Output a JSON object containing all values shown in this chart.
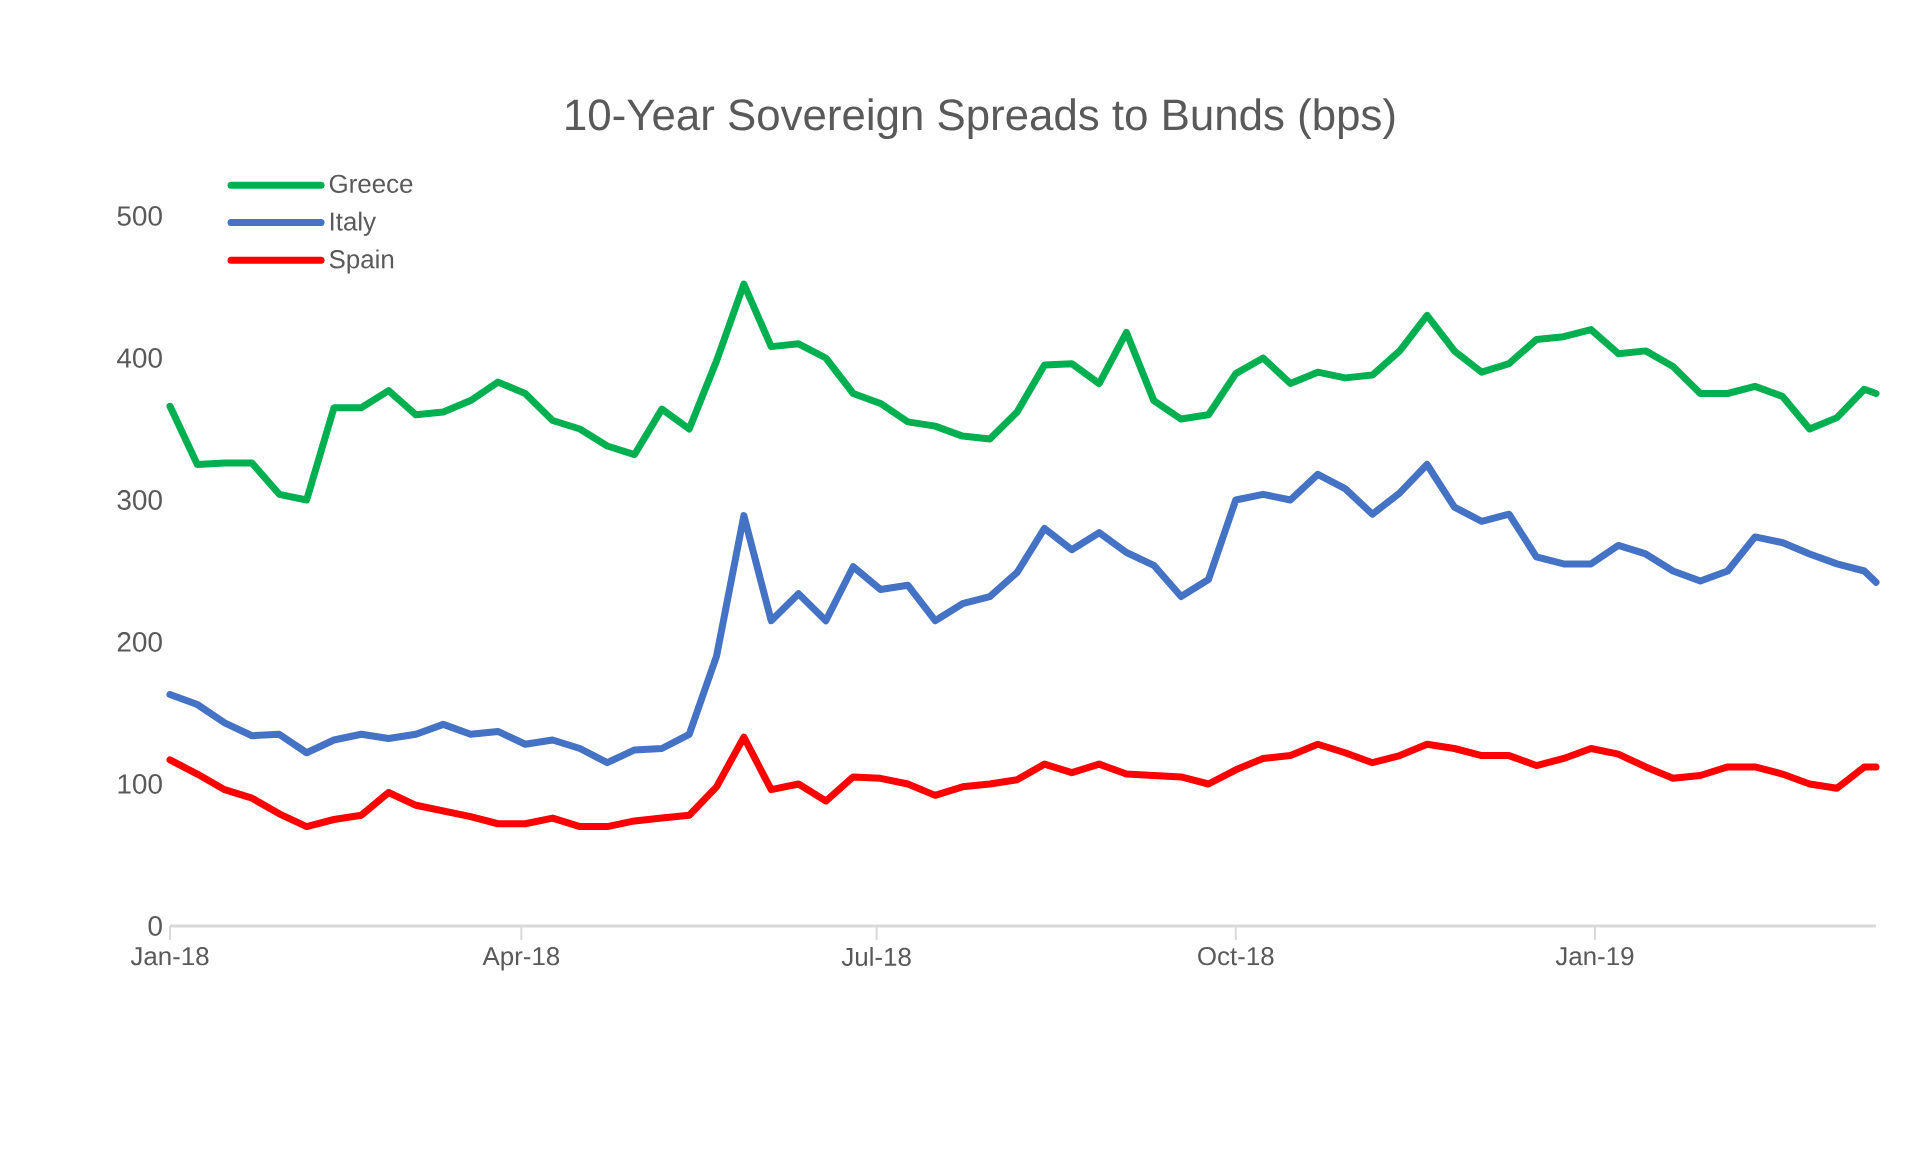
{
  "chart_data": {
    "type": "line",
    "title": "10-Year Sovereign Spreads to Bunds (bps)",
    "x": [
      "2018-01-01",
      "2018-01-08",
      "2018-01-15",
      "2018-01-22",
      "2018-01-29",
      "2018-02-05",
      "2018-02-12",
      "2018-02-19",
      "2018-02-26",
      "2018-03-05",
      "2018-03-12",
      "2018-03-19",
      "2018-03-26",
      "2018-04-02",
      "2018-04-09",
      "2018-04-16",
      "2018-04-23",
      "2018-04-30",
      "2018-05-07",
      "2018-05-14",
      "2018-05-21",
      "2018-05-28",
      "2018-06-04",
      "2018-06-11",
      "2018-06-18",
      "2018-06-25",
      "2018-07-02",
      "2018-07-09",
      "2018-07-16",
      "2018-07-23",
      "2018-07-30",
      "2018-08-06",
      "2018-08-13",
      "2018-08-20",
      "2018-08-27",
      "2018-09-03",
      "2018-09-10",
      "2018-09-17",
      "2018-09-24",
      "2018-10-01",
      "2018-10-08",
      "2018-10-15",
      "2018-10-22",
      "2018-10-29",
      "2018-11-05",
      "2018-11-12",
      "2018-11-19",
      "2018-11-26",
      "2018-12-03",
      "2018-12-10",
      "2018-12-17",
      "2018-12-24",
      "2018-12-31",
      "2019-01-07",
      "2019-01-14",
      "2019-01-21",
      "2019-01-28",
      "2019-02-04",
      "2019-02-11",
      "2019-02-18",
      "2019-02-25",
      "2019-03-04",
      "2019-03-11",
      "2019-03-14"
    ],
    "series": [
      {
        "name": "Greece",
        "color": "#00b050",
        "values": [
          366,
          325,
          326,
          326,
          304,
          300,
          365,
          365,
          377,
          360,
          362,
          370,
          383,
          375,
          356,
          350,
          338,
          332,
          364,
          350,
          398,
          452,
          408,
          410,
          400,
          375,
          368,
          355,
          352,
          345,
          343,
          362,
          395,
          396,
          382,
          418,
          370,
          357,
          360,
          389,
          400,
          382,
          390,
          386,
          388,
          405,
          430,
          405,
          390,
          396,
          413,
          415,
          420,
          403,
          405,
          394,
          375,
          375,
          380,
          373,
          350,
          358,
          378,
          375
        ]
      },
      {
        "name": "Italy",
        "color": "#4472c4",
        "values": [
          163,
          156,
          143,
          134,
          135,
          122,
          131,
          135,
          132,
          135,
          142,
          135,
          137,
          128,
          131,
          125,
          115,
          124,
          125,
          135,
          190,
          289,
          215,
          234,
          215,
          253,
          237,
          240,
          215,
          227,
          232,
          249,
          280,
          265,
          277,
          263,
          254,
          232,
          244,
          300,
          304,
          300,
          318,
          308,
          290,
          305,
          325,
          295,
          285,
          290,
          260,
          255,
          255,
          268,
          262,
          250,
          243,
          250,
          274,
          270,
          262,
          255,
          250,
          242
        ]
      },
      {
        "name": "Spain",
        "color": "#ff0000",
        "values": [
          117,
          107,
          96,
          90,
          79,
          70,
          75,
          78,
          94,
          85,
          81,
          77,
          72,
          72,
          76,
          70,
          70,
          74,
          76,
          78,
          98,
          133,
          96,
          100,
          88,
          105,
          104,
          100,
          92,
          98,
          100,
          103,
          114,
          108,
          114,
          107,
          106,
          105,
          100,
          110,
          118,
          120,
          128,
          122,
          115,
          120,
          128,
          125,
          120,
          120,
          113,
          118,
          125,
          121,
          112,
          104,
          106,
          112,
          112,
          107,
          100,
          97,
          112,
          112
        ]
      }
    ],
    "xlim": [
      "2018-01-01",
      "2019-03-14"
    ],
    "xticks": [
      {
        "value": "2018-01-01",
        "label": "Jan-18"
      },
      {
        "value": "2018-04-01",
        "label": "Apr-18"
      },
      {
        "value": "2018-07-01",
        "label": "Jul-18"
      },
      {
        "value": "2018-10-01",
        "label": "Oct-18"
      },
      {
        "value": "2019-01-01",
        "label": "Jan-19"
      }
    ],
    "ylim": [
      0,
      500
    ],
    "yticks": [
      0,
      100,
      200,
      300,
      400,
      500
    ],
    "legend": "top left"
  }
}
